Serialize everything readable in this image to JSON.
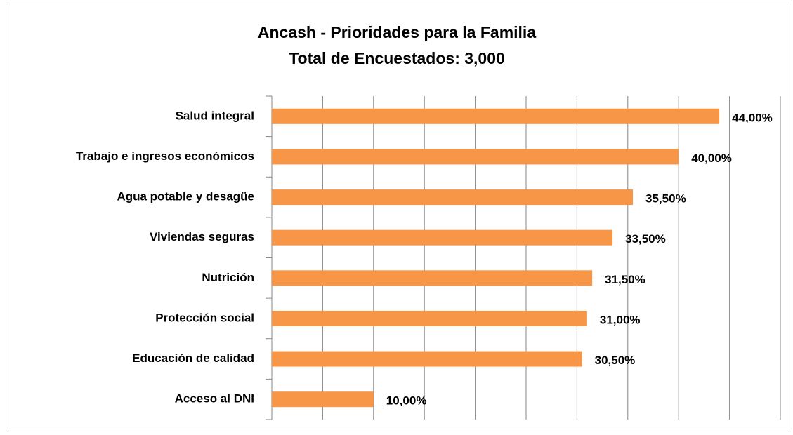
{
  "chart_data": {
    "type": "hbar",
    "title": "Ancash - Prioridades para la Familia",
    "subtitle": "Total de Encuestados: 3,000",
    "categories": [
      "Salud integral",
      "Trabajo e ingresos económicos",
      "Agua potable y desagüe",
      "Viviendas seguras",
      "Nutrición",
      "Protección social",
      "Educación de calidad",
      "Acceso al DNI"
    ],
    "values": [
      44,
      40,
      35.5,
      33.5,
      31.5,
      31,
      30.5,
      10
    ],
    "value_labels": [
      "44,00%",
      "40,00%",
      "35,50%",
      "33,50%",
      "31,50%",
      "31,00%",
      "30,50%",
      "10,00%"
    ],
    "color": "#f79646",
    "xlim": [
      0,
      50
    ],
    "xticks": [
      0,
      5,
      10,
      15,
      20,
      25,
      30,
      35,
      40,
      45,
      50
    ],
    "grid": true
  }
}
